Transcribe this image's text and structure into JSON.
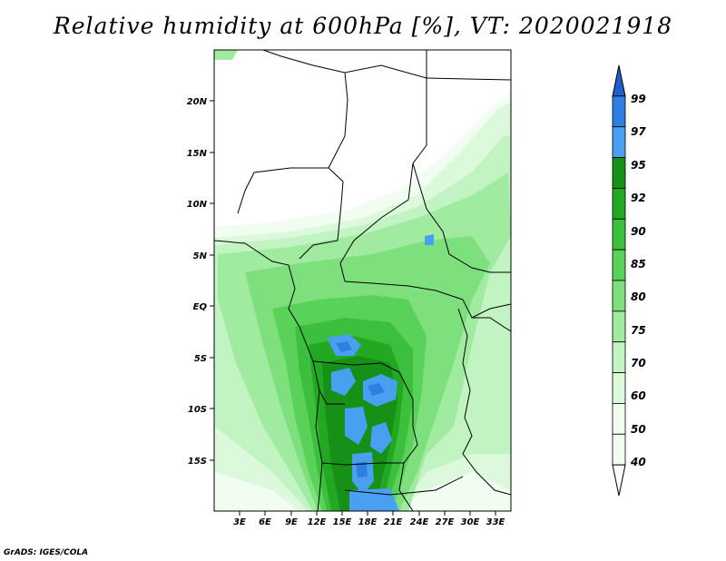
{
  "title": "Relative humidity at 600hPa [%], VT: 2020021918",
  "credit": "GrADS: IGES/COLA",
  "map": {
    "lat_labels": [
      "20N",
      "15N",
      "10N",
      "5N",
      "EQ",
      "5S",
      "10S",
      "15S"
    ],
    "lon_labels": [
      "3E",
      "6E",
      "9E",
      "12E",
      "15E",
      "18E",
      "21E",
      "24E",
      "27E",
      "30E",
      "33E"
    ]
  },
  "colorbar": {
    "levels": [
      "99",
      "97",
      "95",
      "92",
      "90",
      "85",
      "80",
      "75",
      "70",
      "60",
      "50",
      "40"
    ],
    "colors": [
      "#1f5fc8",
      "#2f7fe0",
      "#4aa0f0",
      "#169016",
      "#22a822",
      "#3cbf3c",
      "#5ad25a",
      "#7de07d",
      "#a0eba0",
      "#c2f3c2",
      "#dcf9dc",
      "#f0fdf0",
      "#ffffff"
    ]
  }
}
